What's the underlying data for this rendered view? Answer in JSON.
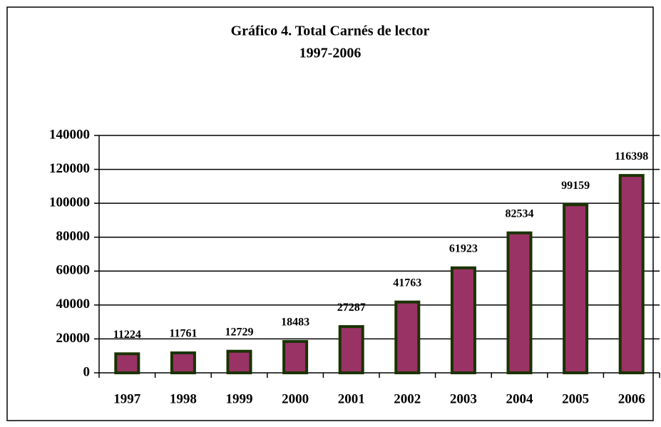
{
  "chart_data": {
    "type": "bar",
    "title": "Gráfico 4. Total Carnés de lector",
    "subtitle": "1997-2006",
    "categories": [
      "1997",
      "1998",
      "1999",
      "2000",
      "2001",
      "2002",
      "2003",
      "2004",
      "2005",
      "2006"
    ],
    "values": [
      11224,
      11761,
      12729,
      18483,
      27287,
      41763,
      61923,
      82534,
      99159,
      116398
    ],
    "color": "#993366",
    "edge_color": "#1a3300",
    "ylim": [
      0,
      140000
    ],
    "yticks": [
      0,
      20000,
      40000,
      60000,
      80000,
      100000,
      120000,
      140000
    ],
    "grid": true
  }
}
